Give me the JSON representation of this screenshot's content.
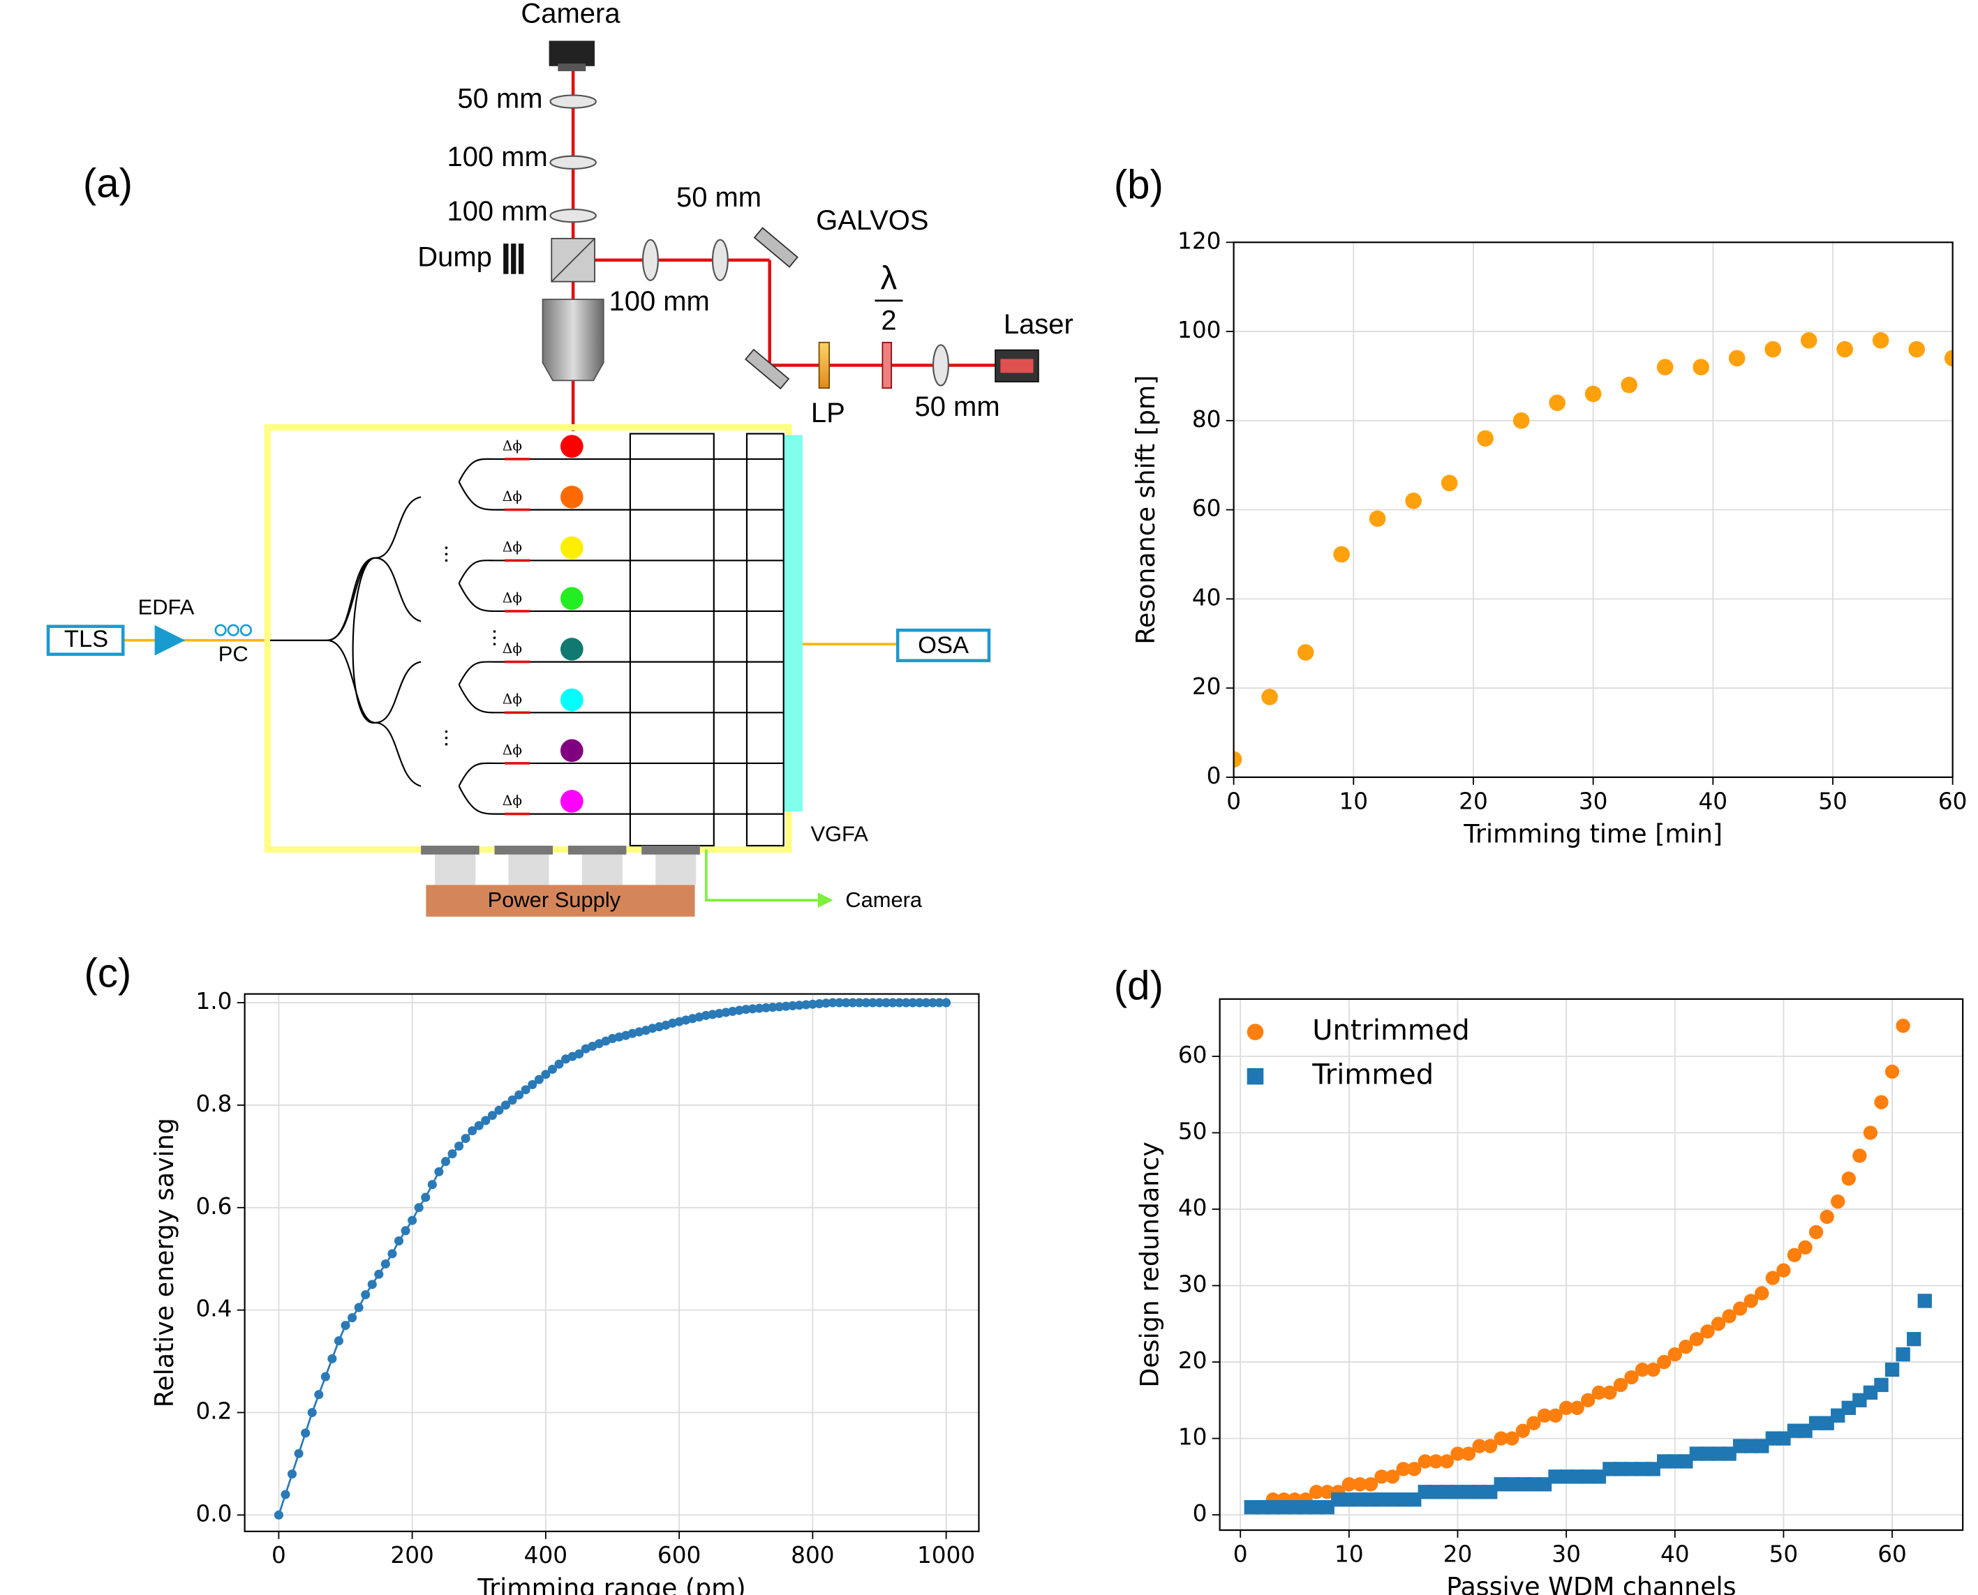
{
  "diagram": {
    "panel": "(a)",
    "labels": [
      "Camera",
      "50 mm",
      "100 mm",
      "100 mm",
      "Dump",
      "100 mm",
      "50 mm",
      "GALVOS",
      "λ",
      "2",
      "Laser",
      "LP",
      "50 mm",
      "TLS",
      "EDFA",
      "PC",
      "OSA",
      "VGFA",
      "Power Supply",
      "Camera"
    ],
    "phase_label": "Δϕ"
  },
  "chart_data": [
    {
      "type": "scatter",
      "panel": "(b)",
      "x_label": "Trimming time [min]",
      "y_label": "Resonance shift [pm]",
      "x": [
        0,
        3,
        6,
        9,
        12,
        15,
        18,
        21,
        24,
        27,
        30,
        33,
        36,
        39,
        42,
        45,
        48,
        51,
        54,
        57,
        60
      ],
      "values": [
        4,
        18,
        28,
        50,
        58,
        62,
        66,
        76,
        80,
        84,
        86,
        88,
        92,
        92,
        94,
        96,
        98,
        96,
        98,
        96,
        94
      ],
      "color": "#ffa10d",
      "marker": "circle",
      "xlim": [
        0,
        60
      ],
      "ylim": [
        0,
        120
      ],
      "xticks": [
        0,
        10,
        20,
        30,
        40,
        50,
        60
      ],
      "yticks": [
        0,
        20,
        40,
        60,
        80,
        100,
        120
      ],
      "grid": true
    },
    {
      "type": "line",
      "panel": "(c)",
      "x_label": "Trimming range (pm)",
      "y_label": "Relative energy saving",
      "x": [
        0,
        10,
        20,
        30,
        40,
        50,
        60,
        70,
        80,
        90,
        100,
        110,
        120,
        130,
        140,
        150,
        160,
        170,
        180,
        190,
        200,
        210,
        220,
        230,
        240,
        250,
        260,
        270,
        280,
        290,
        300,
        310,
        320,
        330,
        340,
        350,
        360,
        370,
        380,
        390,
        400,
        410,
        420,
        430,
        440,
        450,
        460,
        470,
        480,
        490,
        500,
        510,
        520,
        530,
        540,
        550,
        560,
        570,
        580,
        590,
        600,
        610,
        620,
        630,
        640,
        650,
        660,
        670,
        680,
        690,
        700,
        710,
        720,
        730,
        740,
        750,
        760,
        770,
        780,
        790,
        800,
        810,
        820,
        830,
        840,
        850,
        860,
        870,
        880,
        890,
        900,
        910,
        920,
        930,
        940,
        950,
        960,
        970,
        980,
        990,
        1000
      ],
      "values": [
        0,
        0.04,
        0.08,
        0.12,
        0.16,
        0.2,
        0.235,
        0.27,
        0.305,
        0.34,
        0.37,
        0.385,
        0.405,
        0.43,
        0.45,
        0.47,
        0.49,
        0.51,
        0.535,
        0.555,
        0.575,
        0.6,
        0.62,
        0.645,
        0.67,
        0.69,
        0.705,
        0.72,
        0.735,
        0.75,
        0.76,
        0.77,
        0.78,
        0.79,
        0.8,
        0.81,
        0.82,
        0.83,
        0.84,
        0.85,
        0.86,
        0.87,
        0.88,
        0.89,
        0.895,
        0.9,
        0.91,
        0.915,
        0.92,
        0.925,
        0.93,
        0.933,
        0.936,
        0.94,
        0.943,
        0.946,
        0.95,
        0.953,
        0.956,
        0.96,
        0.963,
        0.966,
        0.969,
        0.972,
        0.975,
        0.977,
        0.979,
        0.981,
        0.983,
        0.985,
        0.987,
        0.988,
        0.989,
        0.99,
        0.991,
        0.992,
        0.993,
        0.994,
        0.995,
        0.996,
        0.997,
        0.998,
        0.999,
        1,
        1,
        1,
        1,
        1,
        1,
        1,
        1,
        1,
        1,
        1,
        1,
        1,
        1,
        1,
        1,
        1,
        1
      ],
      "color": "#2a7ab8",
      "marker": "circle",
      "xlim": [
        -51,
        1049
      ],
      "ylim": [
        -0.032,
        1.017
      ],
      "xticks": [
        0,
        200,
        400,
        600,
        800,
        1000
      ],
      "yticks": [
        {
          "value": 0,
          "label": "0.0"
        },
        0.2,
        0.4,
        0.6,
        0.8,
        {
          "value": 1,
          "label": "1.0"
        }
      ],
      "grid": true
    },
    {
      "type": "scatter",
      "panel": "(d)",
      "x_label": "Passive WDM channels",
      "y_label": "Design redundancy",
      "series": [
        {
          "name": "Untrimmed",
          "color": "#ff7f0e",
          "marker": "circle",
          "x": [
            3,
            4,
            5,
            6,
            7,
            8,
            9,
            10,
            11,
            12,
            13,
            14,
            15,
            16,
            17,
            18,
            19,
            20,
            21,
            22,
            23,
            24,
            25,
            26,
            27,
            28,
            29,
            30,
            31,
            32,
            33,
            34,
            35,
            36,
            37,
            38,
            39,
            40,
            41,
            42,
            43,
            44,
            45,
            46,
            47,
            48,
            49,
            50,
            51,
            52,
            53,
            54,
            55,
            56,
            57,
            58,
            59,
            60,
            61
          ],
          "values": [
            2,
            2,
            2,
            2,
            3,
            3,
            3,
            4,
            4,
            4,
            5,
            5,
            6,
            6,
            7,
            7,
            7,
            8,
            8,
            9,
            9,
            10,
            10,
            11,
            12,
            13,
            13,
            14,
            14,
            15,
            16,
            16,
            17,
            18,
            19,
            19,
            20,
            21,
            22,
            23,
            24,
            25,
            26,
            27,
            28,
            29,
            31,
            32,
            34,
            35,
            37,
            39,
            41,
            44,
            47,
            50,
            54,
            58,
            64
          ]
        },
        {
          "name": "Trimmed",
          "color": "#1f77b4",
          "marker": "square",
          "x": [
            1,
            2,
            3,
            4,
            5,
            6,
            7,
            8,
            9,
            10,
            11,
            12,
            13,
            14,
            15,
            16,
            17,
            18,
            19,
            20,
            21,
            22,
            23,
            24,
            25,
            26,
            27,
            28,
            29,
            30,
            31,
            32,
            33,
            34,
            35,
            36,
            37,
            38,
            39,
            40,
            41,
            42,
            43,
            44,
            45,
            46,
            47,
            48,
            49,
            50,
            51,
            52,
            53,
            54,
            55,
            56,
            57,
            58,
            59,
            60,
            61,
            62,
            63
          ],
          "values": [
            1,
            1,
            1,
            1,
            1,
            1,
            1,
            1,
            2,
            2,
            2,
            2,
            2,
            2,
            2,
            2,
            3,
            3,
            3,
            3,
            3,
            3,
            3,
            4,
            4,
            4,
            4,
            4,
            5,
            5,
            5,
            5,
            5,
            6,
            6,
            6,
            6,
            6,
            7,
            7,
            7,
            8,
            8,
            8,
            8,
            9,
            9,
            9,
            10,
            10,
            11,
            11,
            12,
            12,
            13,
            14,
            15,
            16,
            17,
            19,
            21,
            23,
            28
          ]
        }
      ],
      "legend": "upper left",
      "xlim": [
        -1.9,
        66.5
      ],
      "ylim": [
        -2,
        67.5
      ],
      "xticks": [
        0,
        10,
        20,
        30,
        40,
        50,
        60
      ],
      "yticks": [
        0,
        10,
        20,
        30,
        40,
        50,
        60
      ],
      "grid": true
    }
  ]
}
